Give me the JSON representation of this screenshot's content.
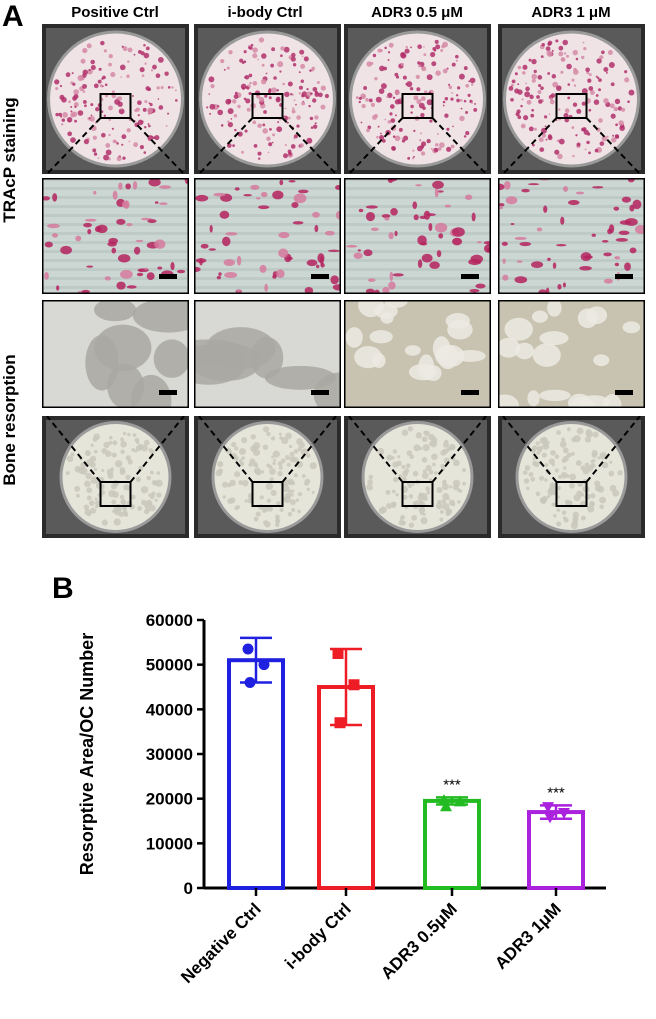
{
  "figure_a": {
    "label": "A",
    "columns": [
      "Positive Ctrl",
      "i-body Ctrl",
      "ADR3 0.5 μM",
      "ADR3 1 μM"
    ],
    "row_labels": {
      "tracp": "TRAcP staining",
      "bone": "Bone resorption"
    }
  },
  "figure_b": {
    "label": "B"
  },
  "chart_data": {
    "type": "bar",
    "categories": [
      "Negative Ctrl",
      "i-body Ctrl",
      "ADR3 0.5μM",
      "ADR3 1μM"
    ],
    "values": [
      51000,
      45000,
      19500,
      17000
    ],
    "errors": [
      5000,
      8500,
      800,
      1500
    ],
    "points": [
      [
        53500,
        50000,
        46000
      ],
      [
        52500,
        45500,
        37000
      ],
      [
        19700,
        19400,
        18300
      ],
      [
        18100,
        16800,
        15800
      ]
    ],
    "significance": [
      "",
      "",
      "***",
      "***"
    ],
    "colors": [
      "#2020e0",
      "#ee1c24",
      "#22bb22",
      "#aa22dd"
    ],
    "markers": [
      "circle",
      "square",
      "triangle-up",
      "triangle-down"
    ],
    "ylabel": "Resorptive Area/OC Number",
    "ylim": [
      0,
      60000
    ],
    "yticks": [
      0,
      10000,
      20000,
      30000,
      40000,
      50000,
      60000
    ]
  }
}
